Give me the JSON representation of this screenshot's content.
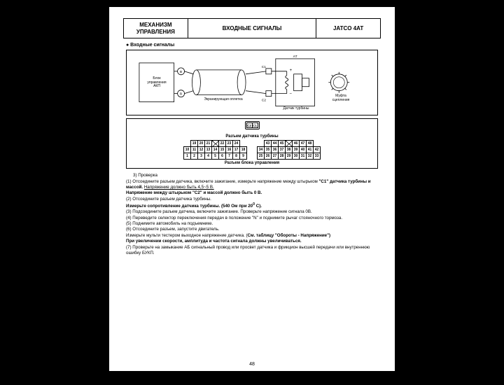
{
  "header": {
    "left": "МЕХАНИЗМ УПРАВЛЕНИЯ",
    "mid": "ВХОДНЫЕ СИГНАЛЫ",
    "right": "JATCO 4AT"
  },
  "section_title": "● Входные сигналы",
  "diagram": {
    "block_label": "Блок управления АКП",
    "shield_label": "Экранирующая оплетка",
    "at_label": "AT",
    "sensor_label": "Датчик турбины",
    "clutch_label": "Муфта сцепления",
    "c1": "C1",
    "c2": "C2",
    "plus": "+",
    "minus": "−"
  },
  "connector": {
    "top_conn_c2": "C2",
    "top_conn_c1": "C1",
    "title1": "Разъем датчика турбины",
    "title2": "Разъем блока управления",
    "left_grid": {
      "r1": [
        "19",
        "20",
        "21",
        "",
        "22",
        "23",
        "24"
      ],
      "r2": [
        "10",
        "11",
        "12",
        "13",
        "14",
        "15",
        "16",
        "17",
        "18"
      ],
      "r3": [
        "1",
        "2",
        "3",
        "4",
        "5",
        "6",
        "7",
        "8",
        "9"
      ],
      "x_cells_r1": [
        3
      ]
    },
    "right_grid": {
      "r1": [
        "43",
        "44",
        "45",
        "",
        "46",
        "47",
        "48"
      ],
      "r2": [
        "34",
        "35",
        "36",
        "37",
        "38",
        "39",
        "40",
        "41",
        "42"
      ],
      "r3": [
        "25",
        "26",
        "27",
        "28",
        "29",
        "30",
        "31",
        "32",
        "33"
      ],
      "x_cells_r1": [
        3
      ]
    }
  },
  "body": {
    "l1": "3) Проверка",
    "l2a": "(1) Отсоедините разъем датчика, включите зажигание, измерьте напряжение между штырьком ",
    "l2b": "\"С1\" датчика турбины и массой. ",
    "l2c": "Напряжение должно быть 4,5~5 В.",
    "l3a": "Напряжение между штырьком \"С2\" и массой должно быть 0 В.",
    "l4": "(2) Отсоедините разъем датчика турбины.",
    "l5a": "Измерьте сопротивление датчика турбины. (540 Ом при 20",
    "l5b": "0",
    "l5c": " С).",
    "l6": "(3) Подсоедините разъем датчика, включите зажигание. Проверьте напряжение сигнала 0В.",
    "l7": "(4) Переведите селектор переключения передач в положение \"N\" и поднимите рычаг стояночного тормоза.",
    "l8": "(5) Поднимите автомобиль на подъемнике.",
    "l9": "(6) Отсоедините разъем, запустите двигатель.",
    "l10a": "Измерьте мульти тестером выходное напряжение датчика. (",
    "l10b": "См. таблицу \"Обороты - Напряжение\")",
    "l11": "При увеличении скорости, амплитуда и частота сигнала должны увеличиваться.",
    "l12": "(7) Проверьте на замыкание АБ сигнальный провод или просвет датчика и фрикцион высшей передачи или внутреннюю ошибку БУКП."
  },
  "page_number": "48",
  "colors": {
    "page_bg": "#ffffff",
    "outer_bg": "#000000",
    "line": "#000000"
  }
}
